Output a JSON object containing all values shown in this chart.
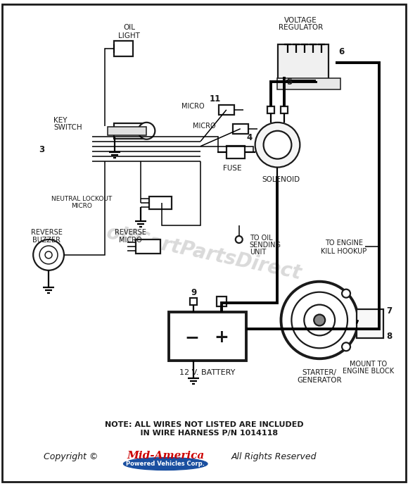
{
  "bg_color": "#ffffff",
  "line_color": "#1a1a1a",
  "thick_lw": 2.8,
  "thin_lw": 1.1,
  "med_lw": 1.6,
  "watermark_text": "olfCartPartsDirect",
  "watermark_color": "#bbbbbb",
  "note_text": "NOTE: ALL WIRES NOT LISTED ARE INCLUDED\n    IN WIRE HARNESS P/N 1014118",
  "copyright_text": "Copyright ©",
  "midamerica_text": "Mid-America",
  "rights_text": "All Rights Reserved",
  "powered_text": "Powered Vehicles Corp.",
  "fig_width": 5.8,
  "fig_height": 6.9,
  "dpi": 100
}
